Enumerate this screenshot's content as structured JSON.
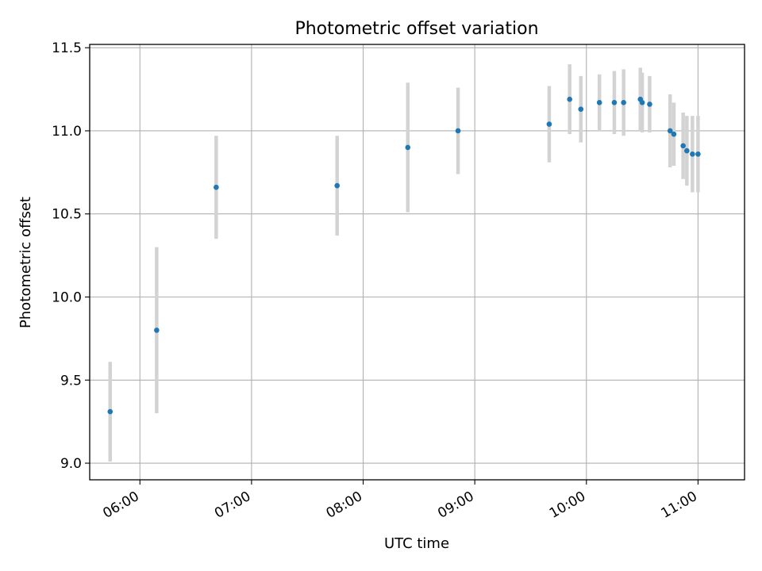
{
  "chart_data": {
    "type": "scatter",
    "title": "Photometric offset variation",
    "xlabel": "UTC time",
    "ylabel": "Photometric offset",
    "x_tick_labels": [
      "06:00",
      "07:00",
      "08:00",
      "09:00",
      "10:00",
      "11:00"
    ],
    "y_tick_labels": [
      "9.0",
      "9.5",
      "10.0",
      "10.5",
      "11.0",
      "11.5"
    ],
    "xlim": [
      "05:33",
      "11:25"
    ],
    "ylim": [
      8.9,
      11.52
    ],
    "grid": true,
    "colors": {
      "points": "#1f77b4",
      "errorbars": "#d3d3d3",
      "grid": "#b0b0b0"
    },
    "points": [
      {
        "x": "05:44",
        "y": 9.31,
        "yerr": 0.3
      },
      {
        "x": "06:09",
        "y": 9.8,
        "yerr": 0.5
      },
      {
        "x": "06:41",
        "y": 10.66,
        "yerr": 0.31
      },
      {
        "x": "07:46",
        "y": 10.67,
        "yerr": 0.3
      },
      {
        "x": "08:24",
        "y": 10.9,
        "yerr": 0.39
      },
      {
        "x": "08:51",
        "y": 11.0,
        "yerr": 0.26
      },
      {
        "x": "09:40",
        "y": 11.04,
        "yerr": 0.23
      },
      {
        "x": "09:51",
        "y": 11.19,
        "yerr": 0.21
      },
      {
        "x": "09:57",
        "y": 11.13,
        "yerr": 0.2
      },
      {
        "x": "10:07",
        "y": 11.17,
        "yerr": 0.17
      },
      {
        "x": "10:15",
        "y": 11.17,
        "yerr": 0.19
      },
      {
        "x": "10:20",
        "y": 11.17,
        "yerr": 0.2
      },
      {
        "x": "10:29",
        "y": 11.19,
        "yerr": 0.19
      },
      {
        "x": "10:30",
        "y": 11.17,
        "yerr": 0.18
      },
      {
        "x": "10:34",
        "y": 11.16,
        "yerr": 0.17
      },
      {
        "x": "10:45",
        "y": 11.0,
        "yerr": 0.22
      },
      {
        "x": "10:47",
        "y": 10.98,
        "yerr": 0.19
      },
      {
        "x": "10:52",
        "y": 10.91,
        "yerr": 0.2
      },
      {
        "x": "10:54",
        "y": 10.88,
        "yerr": 0.21
      },
      {
        "x": "10:57",
        "y": 10.86,
        "yerr": 0.23
      },
      {
        "x": "11:00",
        "y": 10.86,
        "yerr": 0.23
      }
    ]
  }
}
